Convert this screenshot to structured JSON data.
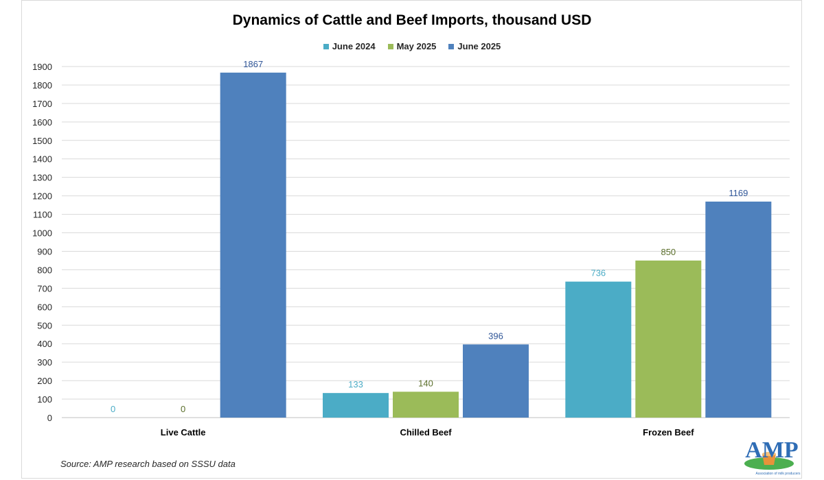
{
  "chart_data": {
    "type": "bar",
    "title": "Dynamics of Cattle and Beef Imports, thousand USD",
    "categories": [
      "Live Cattle",
      "Chilled Beef",
      "Frozen Beef"
    ],
    "series": [
      {
        "name": "June 2024",
        "color": "#4bacc6",
        "label_color": "#4bacc6",
        "values": [
          0,
          133,
          736
        ]
      },
      {
        "name": "May 2025",
        "color": "#9bbb59",
        "label_color": "#5a6e2a",
        "values": [
          0,
          140,
          850
        ]
      },
      {
        "name": "June 2025",
        "color": "#4f81bd",
        "label_color": "#2f5597",
        "values": [
          1867,
          396,
          1169
        ]
      }
    ],
    "ylim": [
      0,
      1900
    ],
    "yticks": [
      0,
      100,
      200,
      300,
      400,
      500,
      600,
      700,
      800,
      900,
      1000,
      1100,
      1200,
      1300,
      1400,
      1500,
      1600,
      1700,
      1800,
      1900
    ],
    "grid": true,
    "legend_position": "top",
    "xlabel": "",
    "ylabel": ""
  },
  "source_note": "Source: AMP research based on SSSU data",
  "logo": {
    "text": "AMP",
    "caption": "Association of milk producers"
  }
}
